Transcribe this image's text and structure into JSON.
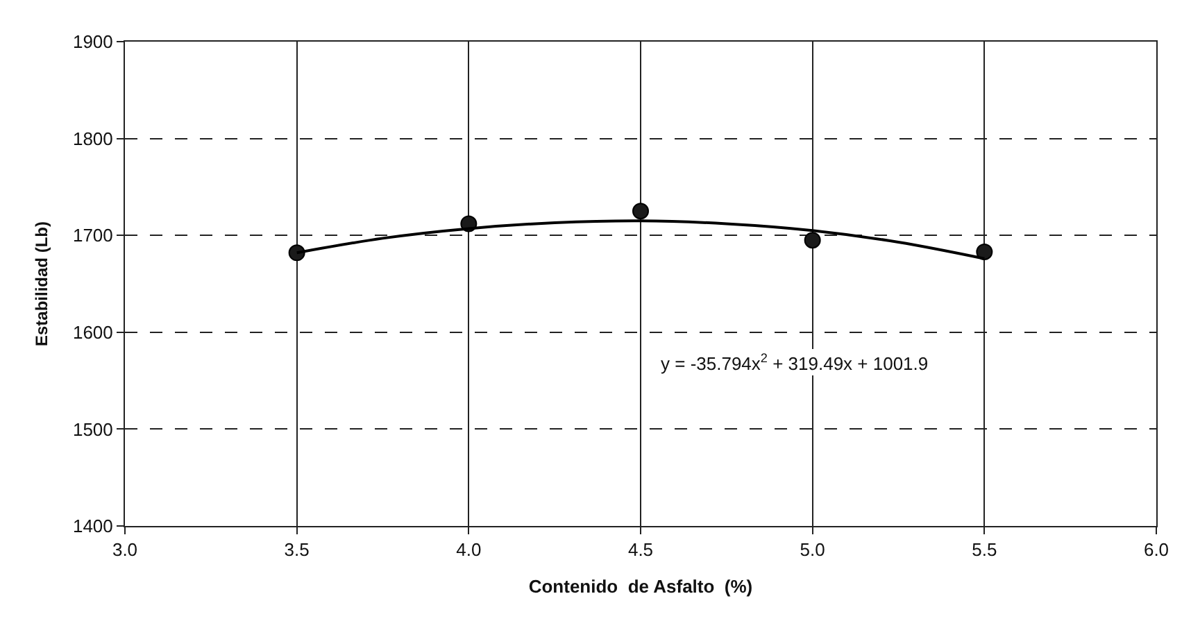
{
  "chart_data": {
    "type": "scatter",
    "xlabel": "Contenido  de Asfalto  (%)",
    "ylabel": "Estabilidad (Lb)",
    "xlim": [
      3.0,
      6.0
    ],
    "xticks": [
      {
        "value": 3.0,
        "label": "3.0"
      },
      {
        "value": 3.5,
        "label": "3.5"
      },
      {
        "value": 4.0,
        "label": "4.0"
      },
      {
        "value": 4.5,
        "label": "4.5"
      },
      {
        "value": 5.0,
        "label": "5.0"
      },
      {
        "value": 5.5,
        "label": "5.5"
      },
      {
        "value": 6.0,
        "label": "6.0"
      }
    ],
    "ylim": [
      1400,
      1900
    ],
    "yticks": [
      1400,
      1500,
      1600,
      1700,
      1800,
      1900
    ],
    "grid": true,
    "series": [
      {
        "marker": "circle",
        "color": "#1a1a1a",
        "x": [
          3.5,
          4.0,
          4.5,
          5.0,
          5.5
        ],
        "values": [
          1682,
          1712,
          1725,
          1695,
          1683
        ]
      },
      {
        "type": "line",
        "marker": "none",
        "color": "#000000",
        "x": [
          3.5,
          3.75,
          4.0,
          4.25,
          4.5,
          4.75,
          5.0,
          5.25,
          5.5
        ],
        "values": [
          1682,
          1697,
          1707,
          1713,
          1715,
          1712,
          1705,
          1693,
          1676
        ]
      }
    ],
    "annotations": [
      "y = -35.794x$^{2}$ + 319.49x + 1001.9"
    ]
  }
}
